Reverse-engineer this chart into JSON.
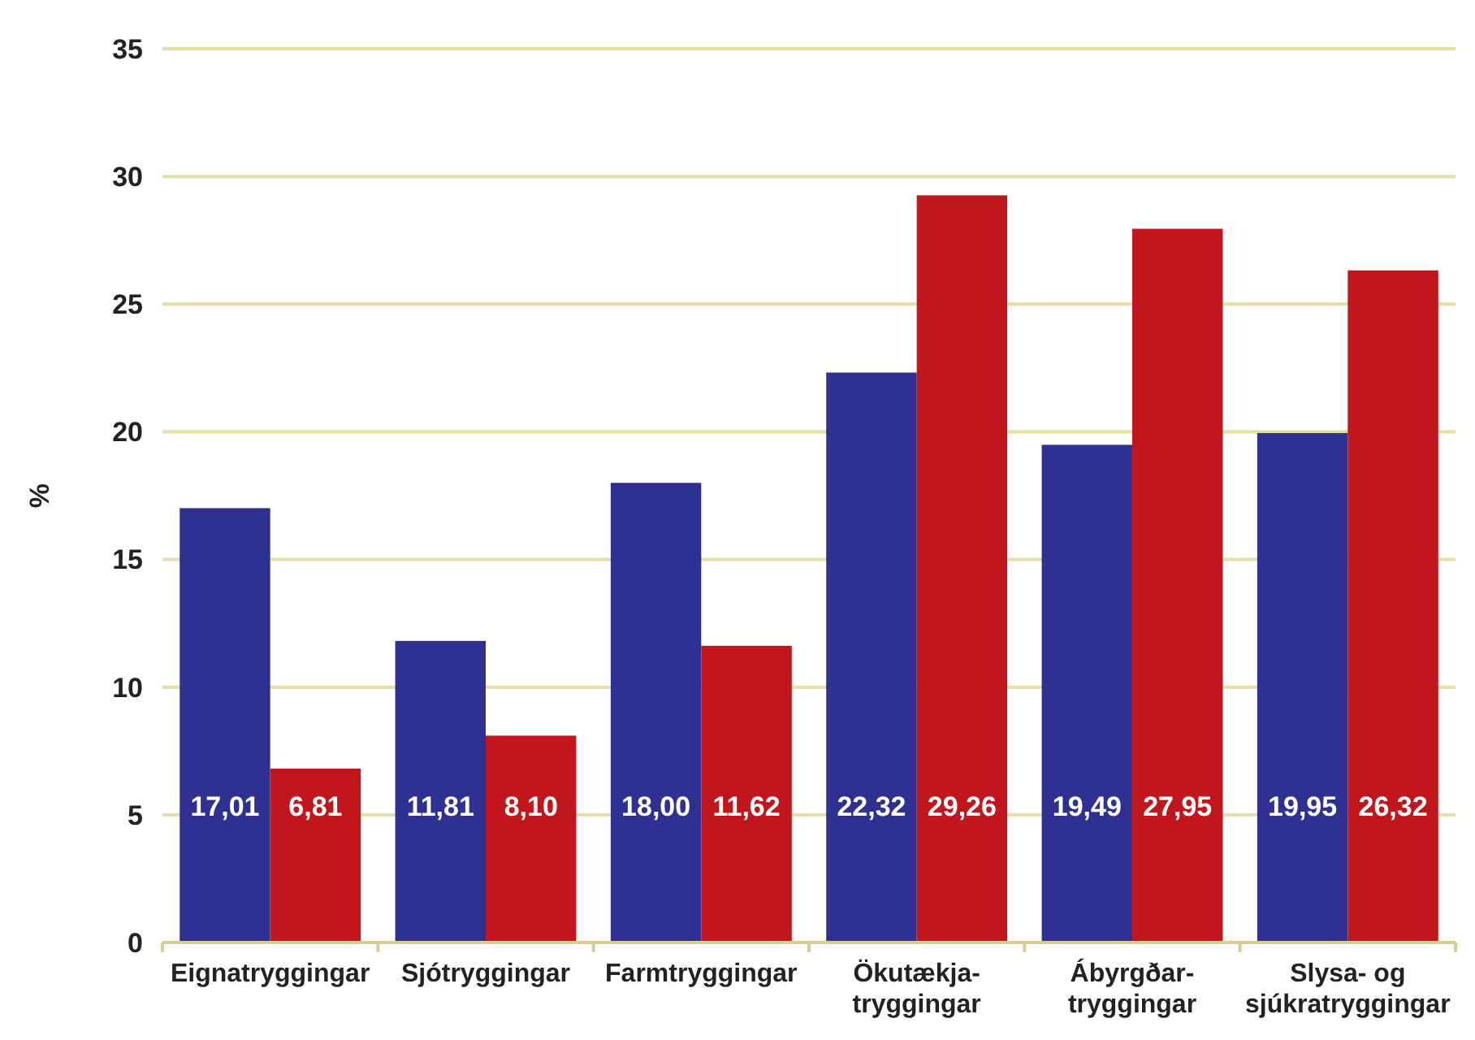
{
  "chart_data": {
    "type": "bar",
    "ylabel": "%",
    "categories": [
      "Eignatryggingar",
      "Sjótryggingar",
      "Farmtryggingar",
      "Ökutækja-\ntryggingar",
      "Ábyrgðar-\ntryggingar",
      "Slysa- og\nsjúkratryggingar"
    ],
    "series": [
      {
        "color": "#2e3192",
        "values": [
          17.01,
          11.81,
          18.0,
          22.32,
          19.49,
          19.95
        ],
        "value_labels": [
          "17,01",
          "11,81",
          "18,00",
          "22,32",
          "19,49",
          "19,95"
        ]
      },
      {
        "color": "#c1161c",
        "values": [
          6.81,
          8.1,
          11.62,
          29.26,
          27.95,
          26.32
        ],
        "value_labels": [
          "6,81",
          "8,10",
          "11,62",
          "29,26",
          "27,95",
          "26,32"
        ]
      }
    ],
    "ylim": [
      0,
      35
    ],
    "yticks": [
      0,
      5,
      10,
      15,
      20,
      25,
      30,
      35
    ],
    "grid": "y"
  }
}
